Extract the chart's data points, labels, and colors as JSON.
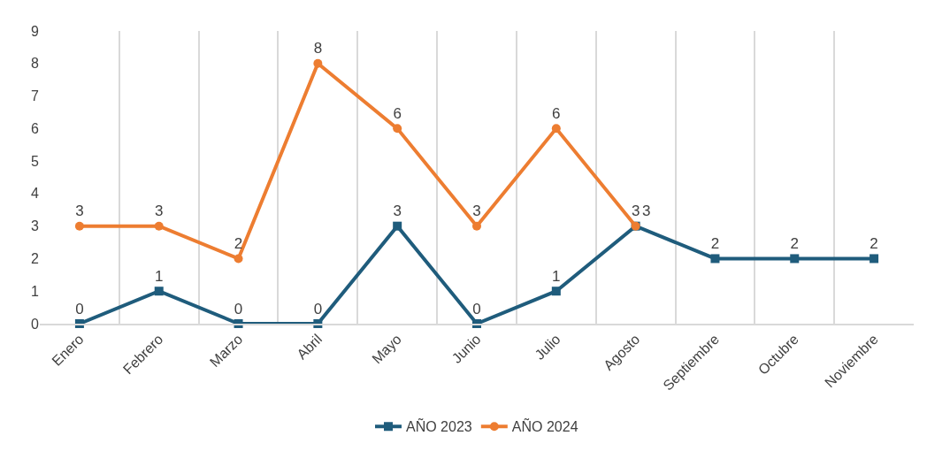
{
  "chart_data": {
    "type": "line",
    "categories": [
      "Enero",
      "Febrero",
      "Marzo",
      "Abril",
      "Mayo",
      "Junio",
      "Julio",
      "Agosto",
      "Septiembre",
      "Octubre",
      "Noviembre"
    ],
    "series": [
      {
        "name": "AÑO 2023",
        "color": "#1f5c7c",
        "marker": "square",
        "values": [
          0,
          1,
          0,
          0,
          3,
          0,
          1,
          3,
          2,
          2,
          2
        ]
      },
      {
        "name": "AÑO 2024",
        "color": "#ed7d31",
        "marker": "circle",
        "values": [
          3,
          3,
          2,
          8,
          6,
          3,
          6,
          3,
          null,
          null,
          null
        ]
      }
    ],
    "ylim": [
      0,
      9
    ],
    "yticks": [
      0,
      1,
      2,
      3,
      4,
      5,
      6,
      7,
      8,
      9
    ],
    "grid": "x",
    "legend": "bottom",
    "data_labels": true,
    "line_style": "solid"
  }
}
